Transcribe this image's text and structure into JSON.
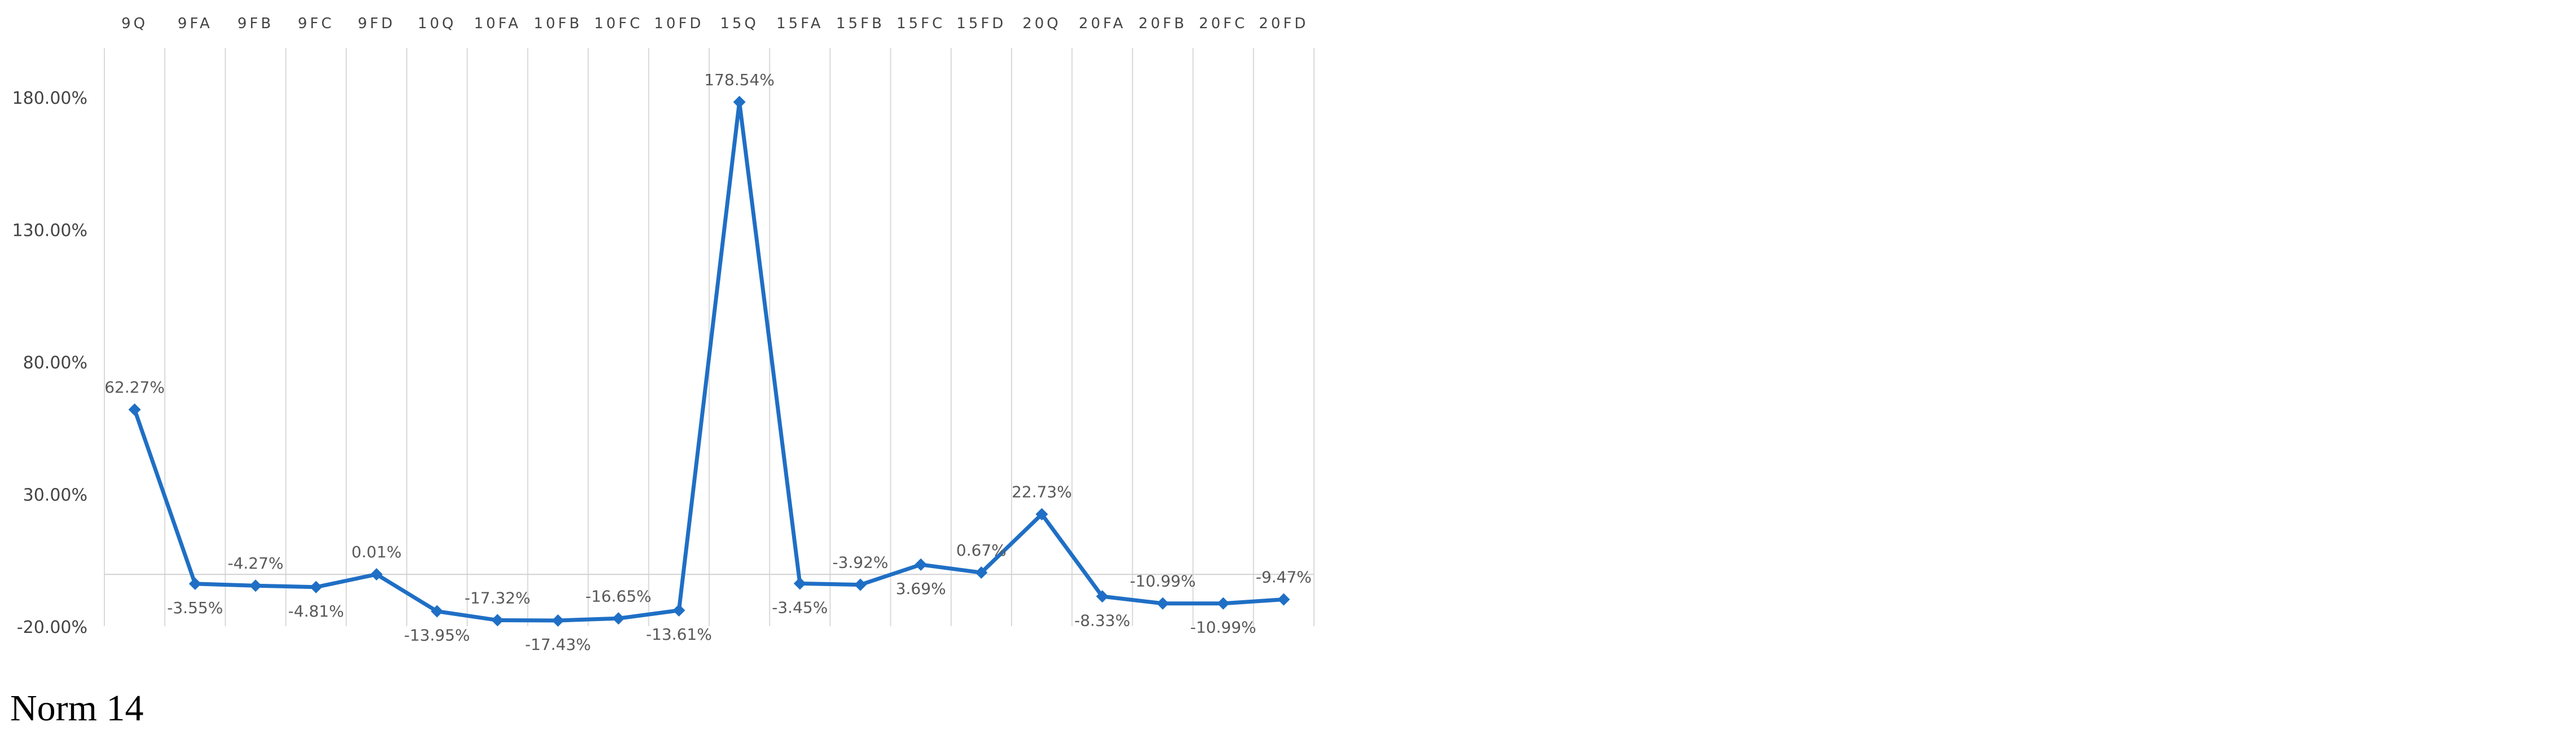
{
  "caption": "Norm 14",
  "chart_data": {
    "type": "line",
    "categories": [
      "9Q",
      "9FA",
      "9FB",
      "9FC",
      "9FD",
      "10Q",
      "10FA",
      "10FB",
      "10FC",
      "10FD",
      "15Q",
      "15FA",
      "15FB",
      "15FC",
      "15FD",
      "20Q",
      "20FA",
      "20FB",
      "20FC",
      "20FD"
    ],
    "series": [
      {
        "values": [
          62.27,
          -3.55,
          -4.27,
          -4.81,
          0.01,
          -13.95,
          -17.32,
          -17.43,
          -16.65,
          -13.61,
          178.54,
          -3.45,
          -3.92,
          3.69,
          0.67,
          22.73,
          -8.33,
          -10.99,
          -10.99,
          -9.47
        ],
        "data_labels": [
          "62.27%",
          "-3.55%",
          "-4.27%",
          "-4.81%",
          "0.01%",
          "-13.95%",
          "-17.32%",
          "-17.43%",
          "-16.65%",
          "-13.61%",
          "178.54%",
          "-3.45%",
          "-3.92%",
          "3.69%",
          "0.67%",
          "22.73%",
          "-8.33%",
          "-10.99%",
          "-10.99%",
          "-9.47%"
        ],
        "color": "#1f6fc5"
      }
    ],
    "label_positions": [
      "above",
      "below",
      "above",
      "below",
      "above",
      "below",
      "above",
      "below",
      "above",
      "below",
      "above",
      "below",
      "above",
      "below",
      "above",
      "above",
      "below",
      "above",
      "below",
      "above"
    ],
    "y_ticks": [
      -20,
      30,
      80,
      130,
      180
    ],
    "y_tick_labels": [
      "-20.00%",
      "30.00%",
      "80.00%",
      "130.00%",
      "180.00%"
    ],
    "ylim": [
      -20,
      200
    ],
    "x_axis_position": "top",
    "grid": {
      "vertical": true,
      "horizontal": false,
      "zero_line": true
    },
    "colors": {
      "line": "#1f6fc5",
      "grid": "#d9d9d9",
      "zero_line": "#d0d0d0"
    }
  }
}
